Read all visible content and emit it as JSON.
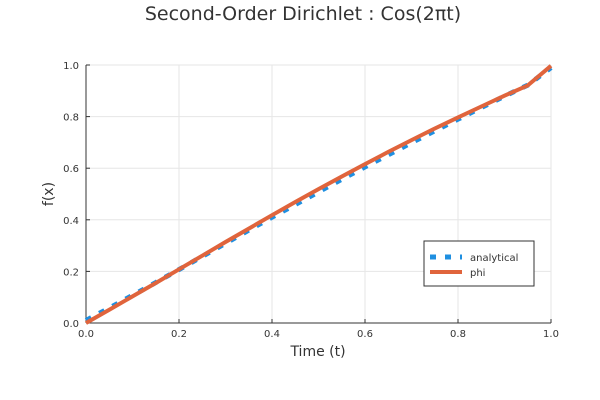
{
  "chart_data": {
    "type": "line",
    "title": "Second-Order Dirichlet : Cos(2πt)",
    "xlabel": "Time (t)",
    "ylabel": "f(x)",
    "xlim": [
      0,
      1
    ],
    "ylim": [
      0,
      1
    ],
    "xticks": [
      0,
      0.2,
      0.4,
      0.6,
      0.8,
      1
    ],
    "yticks": [
      0,
      0.2,
      0.4,
      0.6,
      0.8,
      1
    ],
    "xtick_labels": [
      "0.0",
      "0.2",
      "0.4",
      "0.6",
      "0.8",
      "1.0"
    ],
    "ytick_labels": [
      "0.0",
      "0.2",
      "0.4",
      "0.6",
      "0.8",
      "1.0"
    ],
    "grid": true,
    "legend_position": "bottom-right",
    "x": [
      0,
      0.05,
      0.1,
      0.15,
      0.2,
      0.25,
      0.3,
      0.35,
      0.4,
      0.45,
      0.5,
      0.55,
      0.6,
      0.65,
      0.7,
      0.75,
      0.8,
      0.85,
      0.9,
      0.95,
      1
    ],
    "series": [
      {
        "name": "analytical",
        "style": "dotted",
        "color": "#1f8fe0",
        "values": [
          0.01,
          0.058,
          0.107,
          0.157,
          0.207,
          0.258,
          0.309,
          0.36,
          0.41,
          0.459,
          0.508,
          0.557,
          0.605,
          0.652,
          0.699,
          0.745,
          0.79,
          0.835,
          0.879,
          0.922,
          0.99
        ]
      },
      {
        "name": "phi",
        "style": "solid",
        "color": "#e0643c",
        "values": [
          0,
          0.051,
          0.103,
          0.155,
          0.208,
          0.261,
          0.314,
          0.366,
          0.418,
          0.469,
          0.519,
          0.568,
          0.616,
          0.663,
          0.709,
          0.754,
          0.797,
          0.839,
          0.881,
          0.921,
          0.997
        ]
      }
    ]
  }
}
